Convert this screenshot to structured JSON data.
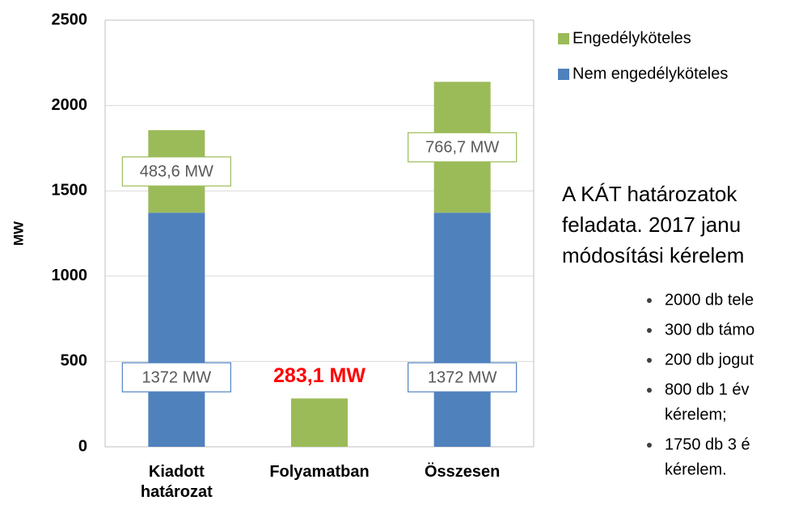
{
  "chart_data": {
    "type": "stacked_bar",
    "y_label": "MW",
    "categories": [
      "Kiadott határozat",
      "Folyamatban",
      "Összesen"
    ],
    "series": [
      {
        "name": "Nem engedélyköteles",
        "color": "#4f81bd",
        "values": [
          1372,
          0,
          1372
        ],
        "value_labels": [
          "1372 MW",
          null,
          "1372 MW"
        ]
      },
      {
        "name": "Engedélyköteles",
        "color": "#9bbb59",
        "values": [
          483.6,
          283.1,
          766.7
        ],
        "value_labels": [
          "483,6 MW",
          "283,1 MW",
          "766,7 MW"
        ]
      }
    ],
    "ylim": [
      0,
      2500
    ],
    "yticks": [
      0,
      500,
      1000,
      1500,
      2000,
      2500
    ],
    "grid": true
  },
  "text": {
    "paragraph_lines": [
      "A KÁT határozatok",
      "feladata. 2017 janu",
      "módosítási kérelem"
    ],
    "bullets": [
      [
        "2000 db tele"
      ],
      [
        "300 db támo"
      ],
      [
        "200 db jogut"
      ],
      [
        "800 db 1 év",
        "kérelem;"
      ],
      [
        "1750 db 3 é",
        "kérelem."
      ]
    ]
  }
}
